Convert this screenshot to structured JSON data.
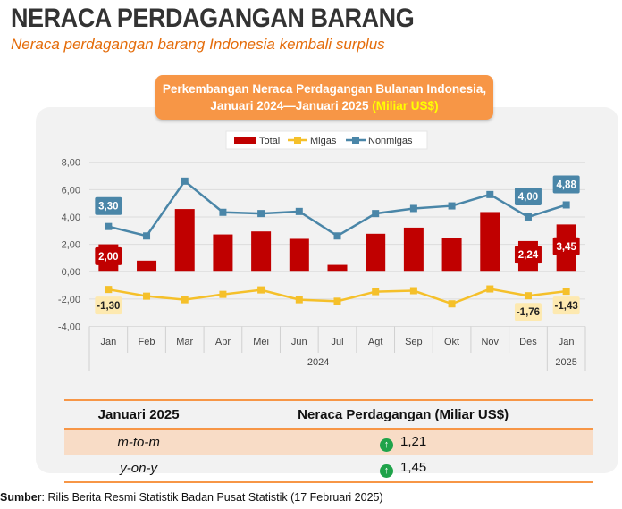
{
  "header": {
    "title": "NERACA PERDAGANGAN BARANG",
    "subtitle": "Neraca perdagangan barang Indonesia kembali surplus"
  },
  "chart_data": {
    "type": "bar+line",
    "title_line1": "Perkembangan Neraca Perdagangan Bulanan Indonesia,",
    "title_line2": "Januari 2024—Januari 2025",
    "unit": "(Miliar US$)",
    "categories": [
      "Jan",
      "Feb",
      "Mar",
      "Apr",
      "Mei",
      "Jun",
      "Jul",
      "Agt",
      "Sep",
      "Okt",
      "Nov",
      "Des",
      "Jan"
    ],
    "year_labels": [
      "2024",
      "2025"
    ],
    "ylim": [
      -4,
      8
    ],
    "yticks": [
      "8,00",
      "6,00",
      "4,00",
      "2,00",
      "0,00",
      "-2,00",
      "-4,00"
    ],
    "grid": true,
    "legend": "top",
    "series": [
      {
        "name": "Total",
        "type": "bar",
        "color": "#c00000",
        "values": [
          2.0,
          0.81,
          4.58,
          2.72,
          2.94,
          2.4,
          0.5,
          2.77,
          3.22,
          2.48,
          4.36,
          2.24,
          3.45
        ]
      },
      {
        "name": "Migas",
        "type": "line",
        "color": "#f5c02a",
        "values": [
          -1.3,
          -1.79,
          -2.05,
          -1.66,
          -1.33,
          -2.05,
          -2.16,
          -1.46,
          -1.39,
          -2.35,
          -1.26,
          -1.76,
          -1.43
        ]
      },
      {
        "name": "Nonmigas",
        "type": "line",
        "color": "#4a86a8",
        "values": [
          3.3,
          2.61,
          6.62,
          4.34,
          4.25,
          4.4,
          2.61,
          4.25,
          4.62,
          4.81,
          5.64,
          4.0,
          4.88
        ]
      }
    ],
    "data_labels": {
      "Total": {
        "0": "2,00",
        "11": "2,24",
        "12": "3,45"
      },
      "Migas": {
        "0": "-1,30",
        "11": "-1,76",
        "12": "-1,43"
      },
      "Nonmigas": {
        "0": "3,30",
        "11": "4,00",
        "12": "4,88"
      }
    }
  },
  "table": {
    "headers": [
      "Januari 2025",
      "Neraca Perdagangan (Miliar US$)"
    ],
    "rows": [
      {
        "label": "m-to-m",
        "value": "1,21",
        "trend": "up"
      },
      {
        "label": "y-on-y",
        "value": "1,45",
        "trend": "up"
      }
    ]
  },
  "source": {
    "label": "Sumber",
    "text": ": Rilis Berita Resmi Statistik Badan Pusat Statistik (17 Februari 2025)"
  }
}
